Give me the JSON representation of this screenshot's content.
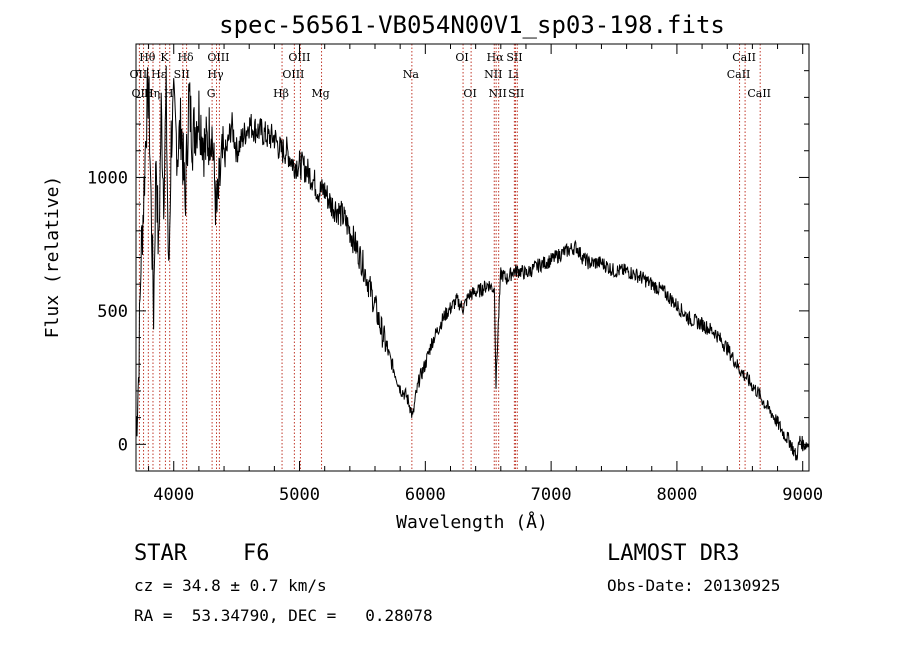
{
  "chart_data": {
    "type": "line",
    "title": "spec-56561-VB054N00V1_sp03-198.fits",
    "xlabel": "Wavelength (Å)",
    "ylabel": "Flux (relative)",
    "xlim": [
      3700,
      9050
    ],
    "ylim": [
      -100,
      1500
    ],
    "xticks": [
      4000,
      5000,
      6000,
      7000,
      8000,
      9000
    ],
    "yticks": [
      0,
      500,
      1000
    ],
    "series": [
      {
        "name": "flux",
        "x": [
          3700,
          3720,
          3740,
          3760,
          3780,
          3800,
          3820,
          3840,
          3860,
          3880,
          3900,
          3920,
          3940,
          3960,
          3980,
          4000,
          4030,
          4060,
          4090,
          4120,
          4150,
          4200,
          4250,
          4300,
          4340,
          4380,
          4420,
          4460,
          4500,
          4550,
          4600,
          4650,
          4700,
          4750,
          4800,
          4850,
          4900,
          4950,
          5000,
          5050,
          5100,
          5150,
          5200,
          5250,
          5300,
          5350,
          5400,
          5450,
          5500,
          5550,
          5600,
          5650,
          5700,
          5750,
          5800,
          5850,
          5880,
          5900,
          5920,
          5950,
          6000,
          6050,
          6100,
          6150,
          6200,
          6250,
          6300,
          6350,
          6400,
          6450,
          6500,
          6550,
          6562,
          6580,
          6600,
          6650,
          6700,
          6750,
          6800,
          6900,
          7000,
          7100,
          7200,
          7250,
          7300,
          7400,
          7500,
          7600,
          7700,
          7800,
          7900,
          8000,
          8100,
          8200,
          8300,
          8400,
          8500,
          8600,
          8650,
          8700,
          8750,
          8800,
          8850,
          8900,
          8950,
          8980,
          9000,
          9050
        ],
        "y": [
          50,
          250,
          700,
          900,
          1200,
          1350,
          900,
          500,
          1100,
          700,
          1250,
          950,
          1300,
          600,
          1150,
          1250,
          1100,
          1200,
          900,
          1300,
          1150,
          1250,
          1100,
          1200,
          850,
          1050,
          1100,
          1200,
          1100,
          1150,
          1200,
          1180,
          1170,
          1150,
          1150,
          1100,
          1100,
          1050,
          1050,
          1030,
          1000,
          950,
          950,
          900,
          880,
          850,
          800,
          740,
          680,
          600,
          520,
          430,
          350,
          280,
          210,
          180,
          140,
          100,
          170,
          240,
          300,
          380,
          430,
          480,
          510,
          540,
          510,
          560,
          570,
          580,
          600,
          580,
          220,
          450,
          640,
          620,
          650,
          650,
          640,
          670,
          690,
          720,
          740,
          700,
          680,
          680,
          650,
          650,
          630,
          600,
          570,
          520,
          470,
          450,
          420,
          360,
          280,
          220,
          190,
          150,
          120,
          80,
          40,
          10,
          -50,
          20,
          0,
          0
        ]
      }
    ],
    "lines": [
      {
        "name": "Hθ",
        "wavelength": 3798,
        "row": 0
      },
      {
        "name": "K",
        "wavelength": 3934,
        "row": 0
      },
      {
        "name": "Hδ",
        "wavelength": 4102,
        "row": 0
      },
      {
        "name": "OIII",
        "wavelength": 4363,
        "row": 0
      },
      {
        "name": "OIII",
        "wavelength": 5007,
        "row": 0
      },
      {
        "name": "OI",
        "wavelength": 6300,
        "row": 0
      },
      {
        "name": "Hα",
        "wavelength": 6563,
        "row": 0
      },
      {
        "name": "SII",
        "wavelength": 6717,
        "row": 0
      },
      {
        "name": "CaII",
        "wavelength": 8542,
        "row": 0
      },
      {
        "name": "OII",
        "wavelength": 3727,
        "row": 1
      },
      {
        "name": "Hε",
        "wavelength": 3889,
        "row": 1
      },
      {
        "name": "SII",
        "wavelength": 4072,
        "row": 1
      },
      {
        "name": "Hγ",
        "wavelength": 4340,
        "row": 1
      },
      {
        "name": "OIII",
        "wavelength": 4959,
        "row": 1
      },
      {
        "name": "Na",
        "wavelength": 5893,
        "row": 1
      },
      {
        "name": "NII",
        "wavelength": 6548,
        "row": 1
      },
      {
        "name": "Li",
        "wavelength": 6708,
        "row": 1
      },
      {
        "name": "CaII",
        "wavelength": 8498,
        "row": 1
      },
      {
        "name": "OIII",
        "wavelength": 3760,
        "row": 2
      },
      {
        "name": "Hη",
        "wavelength": 3835,
        "row": 2
      },
      {
        "name": "H",
        "wavelength": 3968,
        "row": 2
      },
      {
        "name": "G",
        "wavelength": 4305,
        "row": 2
      },
      {
        "name": "Hβ",
        "wavelength": 4861,
        "row": 2
      },
      {
        "name": "Mg",
        "wavelength": 5175,
        "row": 2
      },
      {
        "name": "OI",
        "wavelength": 6364,
        "row": 2
      },
      {
        "name": "NII",
        "wavelength": 6583,
        "row": 2
      },
      {
        "name": "SII",
        "wavelength": 6731,
        "row": 2
      },
      {
        "name": "CaII",
        "wavelength": 8662,
        "row": 2
      }
    ]
  },
  "info": {
    "class": "STAR",
    "subclass": "F6",
    "survey": "LAMOST DR3",
    "redshift": "cz = 34.8 ± 0.7 km/s",
    "obs_date": "Obs-Date: 20130925",
    "coords": "RA =  53.34790, DEC =   0.28078"
  },
  "colors": {
    "spectrum": "#000000",
    "line_marker": "#c0392b",
    "axis": "#000000"
  }
}
